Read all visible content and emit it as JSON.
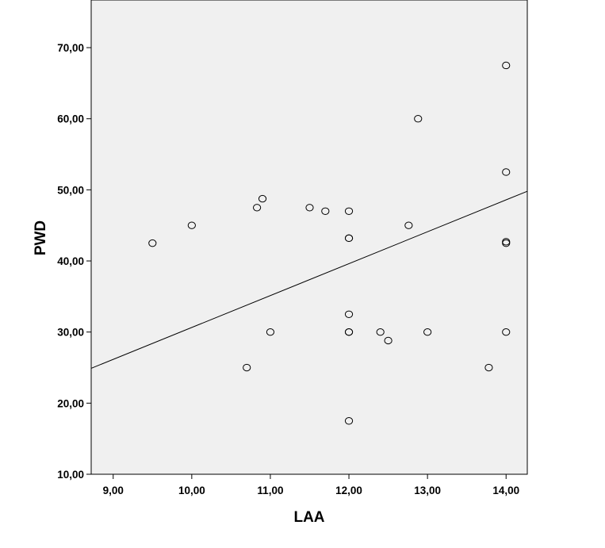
{
  "chart_data": {
    "type": "scatter",
    "title": "",
    "xlabel": "LAA",
    "ylabel": "PWD",
    "xlim": [
      8.72,
      14.27
    ],
    "ylim": [
      10,
      76.7
    ],
    "x_ticks": [
      9,
      10,
      11,
      12,
      13,
      14
    ],
    "y_ticks": [
      10,
      20,
      30,
      40,
      50,
      60,
      70
    ],
    "x_tick_labels": [
      "9,00",
      "10,00",
      "11,00",
      "12,00",
      "13,00",
      "14,00"
    ],
    "y_tick_labels": [
      "10,00",
      "20,00",
      "30,00",
      "40,00",
      "50,00",
      "60,00",
      "70,00"
    ],
    "grid": false,
    "legend": "none",
    "colors": {
      "plot_background": "#f0f0f0",
      "marker": "#000000",
      "line": "#000000"
    },
    "points": [
      {
        "x": 9.5,
        "y": 42.5
      },
      {
        "x": 10.0,
        "y": 45.0
      },
      {
        "x": 10.7,
        "y": 25.0
      },
      {
        "x": 10.83,
        "y": 47.5
      },
      {
        "x": 10.9,
        "y": 48.75
      },
      {
        "x": 11.0,
        "y": 30.0
      },
      {
        "x": 11.5,
        "y": 47.5
      },
      {
        "x": 11.7,
        "y": 47.0
      },
      {
        "x": 12.0,
        "y": 47.0
      },
      {
        "x": 12.0,
        "y": 43.2
      },
      {
        "x": 12.0,
        "y": 43.2
      },
      {
        "x": 12.0,
        "y": 32.5
      },
      {
        "x": 12.0,
        "y": 30.0
      },
      {
        "x": 12.0,
        "y": 30.0
      },
      {
        "x": 12.0,
        "y": 17.5
      },
      {
        "x": 12.4,
        "y": 30.0
      },
      {
        "x": 12.5,
        "y": 28.8
      },
      {
        "x": 12.76,
        "y": 45.0
      },
      {
        "x": 12.88,
        "y": 60.0
      },
      {
        "x": 13.0,
        "y": 30.0
      },
      {
        "x": 13.78,
        "y": 25.0
      },
      {
        "x": 14.0,
        "y": 67.5
      },
      {
        "x": 14.0,
        "y": 52.5
      },
      {
        "x": 14.0,
        "y": 42.5
      },
      {
        "x": 14.0,
        "y": 42.7
      },
      {
        "x": 14.0,
        "y": 30.0
      }
    ],
    "fit_line": {
      "x": [
        8.72,
        14.27
      ],
      "y": [
        24.9,
        49.8
      ]
    }
  }
}
